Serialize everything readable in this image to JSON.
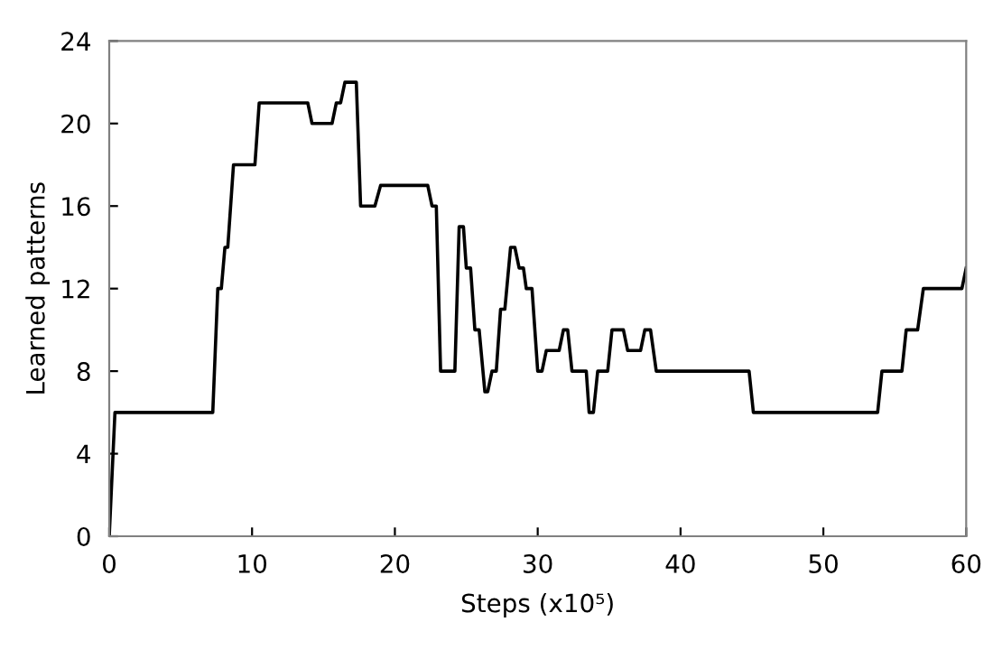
{
  "chart_data": {
    "type": "line",
    "xlabel": "Steps (x10⁵)",
    "ylabel": "Learned patterns",
    "x": [
      0,
      0.4,
      7.25,
      7.6,
      7.85,
      8.1,
      8.3,
      8.7,
      10.2,
      10.5,
      13.9,
      14.2,
      15.6,
      15.9,
      16.2,
      16.5,
      17.3,
      17.6,
      18.6,
      19.0,
      22.3,
      22.6,
      22.9,
      23.2,
      24.2,
      24.5,
      24.8,
      25.0,
      25.3,
      25.6,
      25.9,
      26.3,
      26.5,
      26.8,
      27.1,
      27.4,
      27.7,
      28.1,
      28.4,
      28.7,
      29.0,
      29.2,
      29.6,
      30.0,
      30.3,
      30.6,
      31.5,
      31.8,
      32.1,
      32.4,
      33.4,
      33.6,
      33.9,
      34.2,
      34.9,
      35.2,
      36.0,
      36.3,
      37.2,
      37.5,
      37.9,
      38.3,
      44.8,
      45.1,
      53.8,
      54.1,
      55.5,
      55.8,
      56.6,
      57.0,
      59.7,
      60
    ],
    "values": [
      0,
      6,
      6,
      12,
      12,
      14,
      14,
      18,
      18,
      21,
      21,
      20,
      20,
      21,
      21,
      22,
      22,
      16,
      16,
      17,
      17,
      16,
      16,
      8,
      8,
      15,
      15,
      13,
      13,
      10,
      10,
      7,
      7,
      8,
      8,
      11,
      11,
      14,
      14,
      13,
      13,
      12,
      12,
      8,
      8,
      9,
      9,
      10,
      10,
      8,
      8,
      6,
      6,
      8,
      8,
      10,
      10,
      9,
      9,
      10,
      10,
      8,
      8,
      6,
      6,
      8,
      8,
      10,
      10,
      12,
      12,
      13
    ],
    "color": "#000000",
    "xlim": [
      0,
      60
    ],
    "xticks": [
      0,
      10,
      20,
      30,
      40,
      50,
      60
    ],
    "ylim": [
      0,
      24
    ],
    "yticks": [
      0,
      4,
      8,
      12,
      16,
      20,
      24
    ],
    "grid": false
  }
}
